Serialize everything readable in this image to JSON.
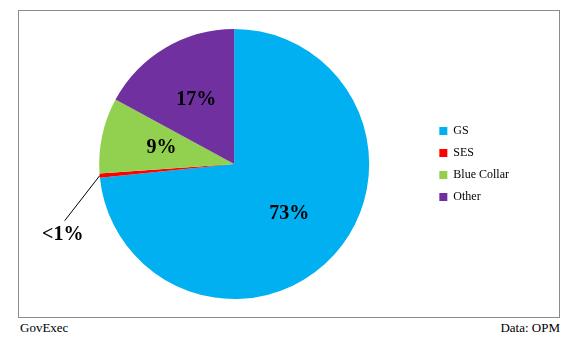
{
  "chart_data": {
    "type": "pie",
    "categories": [
      "GS",
      "SES",
      "Blue Collar",
      "Other"
    ],
    "values": [
      73,
      0.5,
      9,
      17
    ],
    "value_labels": [
      "73%",
      "<1%",
      "9%",
      "17%"
    ],
    "colors": [
      "#00b0f0",
      "#ff0000",
      "#92d050",
      "#7030a0"
    ],
    "data_labels": true,
    "legend": "right",
    "credit": "GovExec",
    "source": "Data: OPM"
  }
}
